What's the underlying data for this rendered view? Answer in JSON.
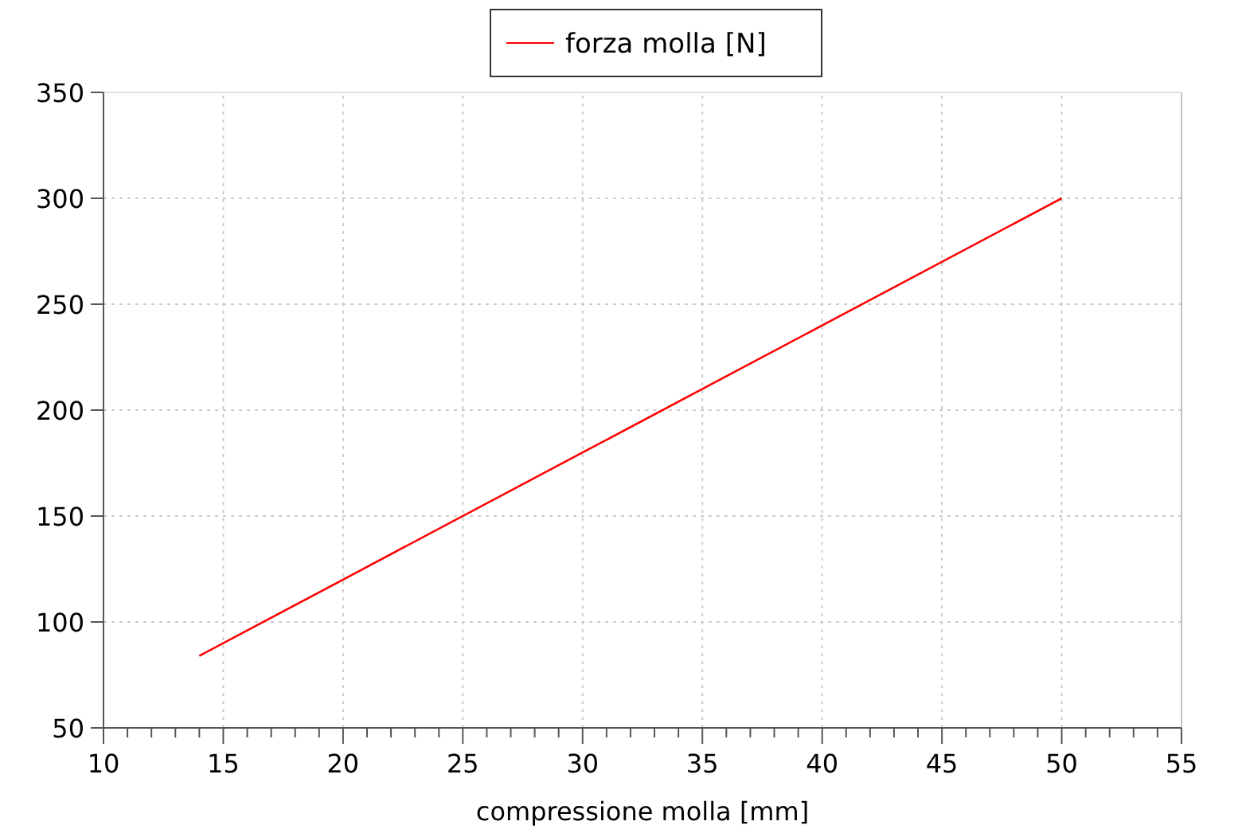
{
  "chart_data": {
    "type": "line",
    "xlabel": "compressione molla [mm]",
    "x": [
      14,
      20,
      30,
      40,
      50
    ],
    "series": [
      {
        "name": "forza molla [N]",
        "color": "#ff0000",
        "values": [
          84,
          120,
          180,
          240,
          300
        ]
      }
    ],
    "xlim": [
      10,
      55
    ],
    "xticks": [
      10,
      15,
      20,
      25,
      30,
      35,
      40,
      45,
      50,
      55
    ],
    "ylim": [
      50,
      350
    ],
    "yticks": [
      50,
      100,
      150,
      200,
      250,
      300,
      350
    ],
    "grid": true,
    "legend": "top",
    "marker": "none",
    "line_style": "solid"
  }
}
